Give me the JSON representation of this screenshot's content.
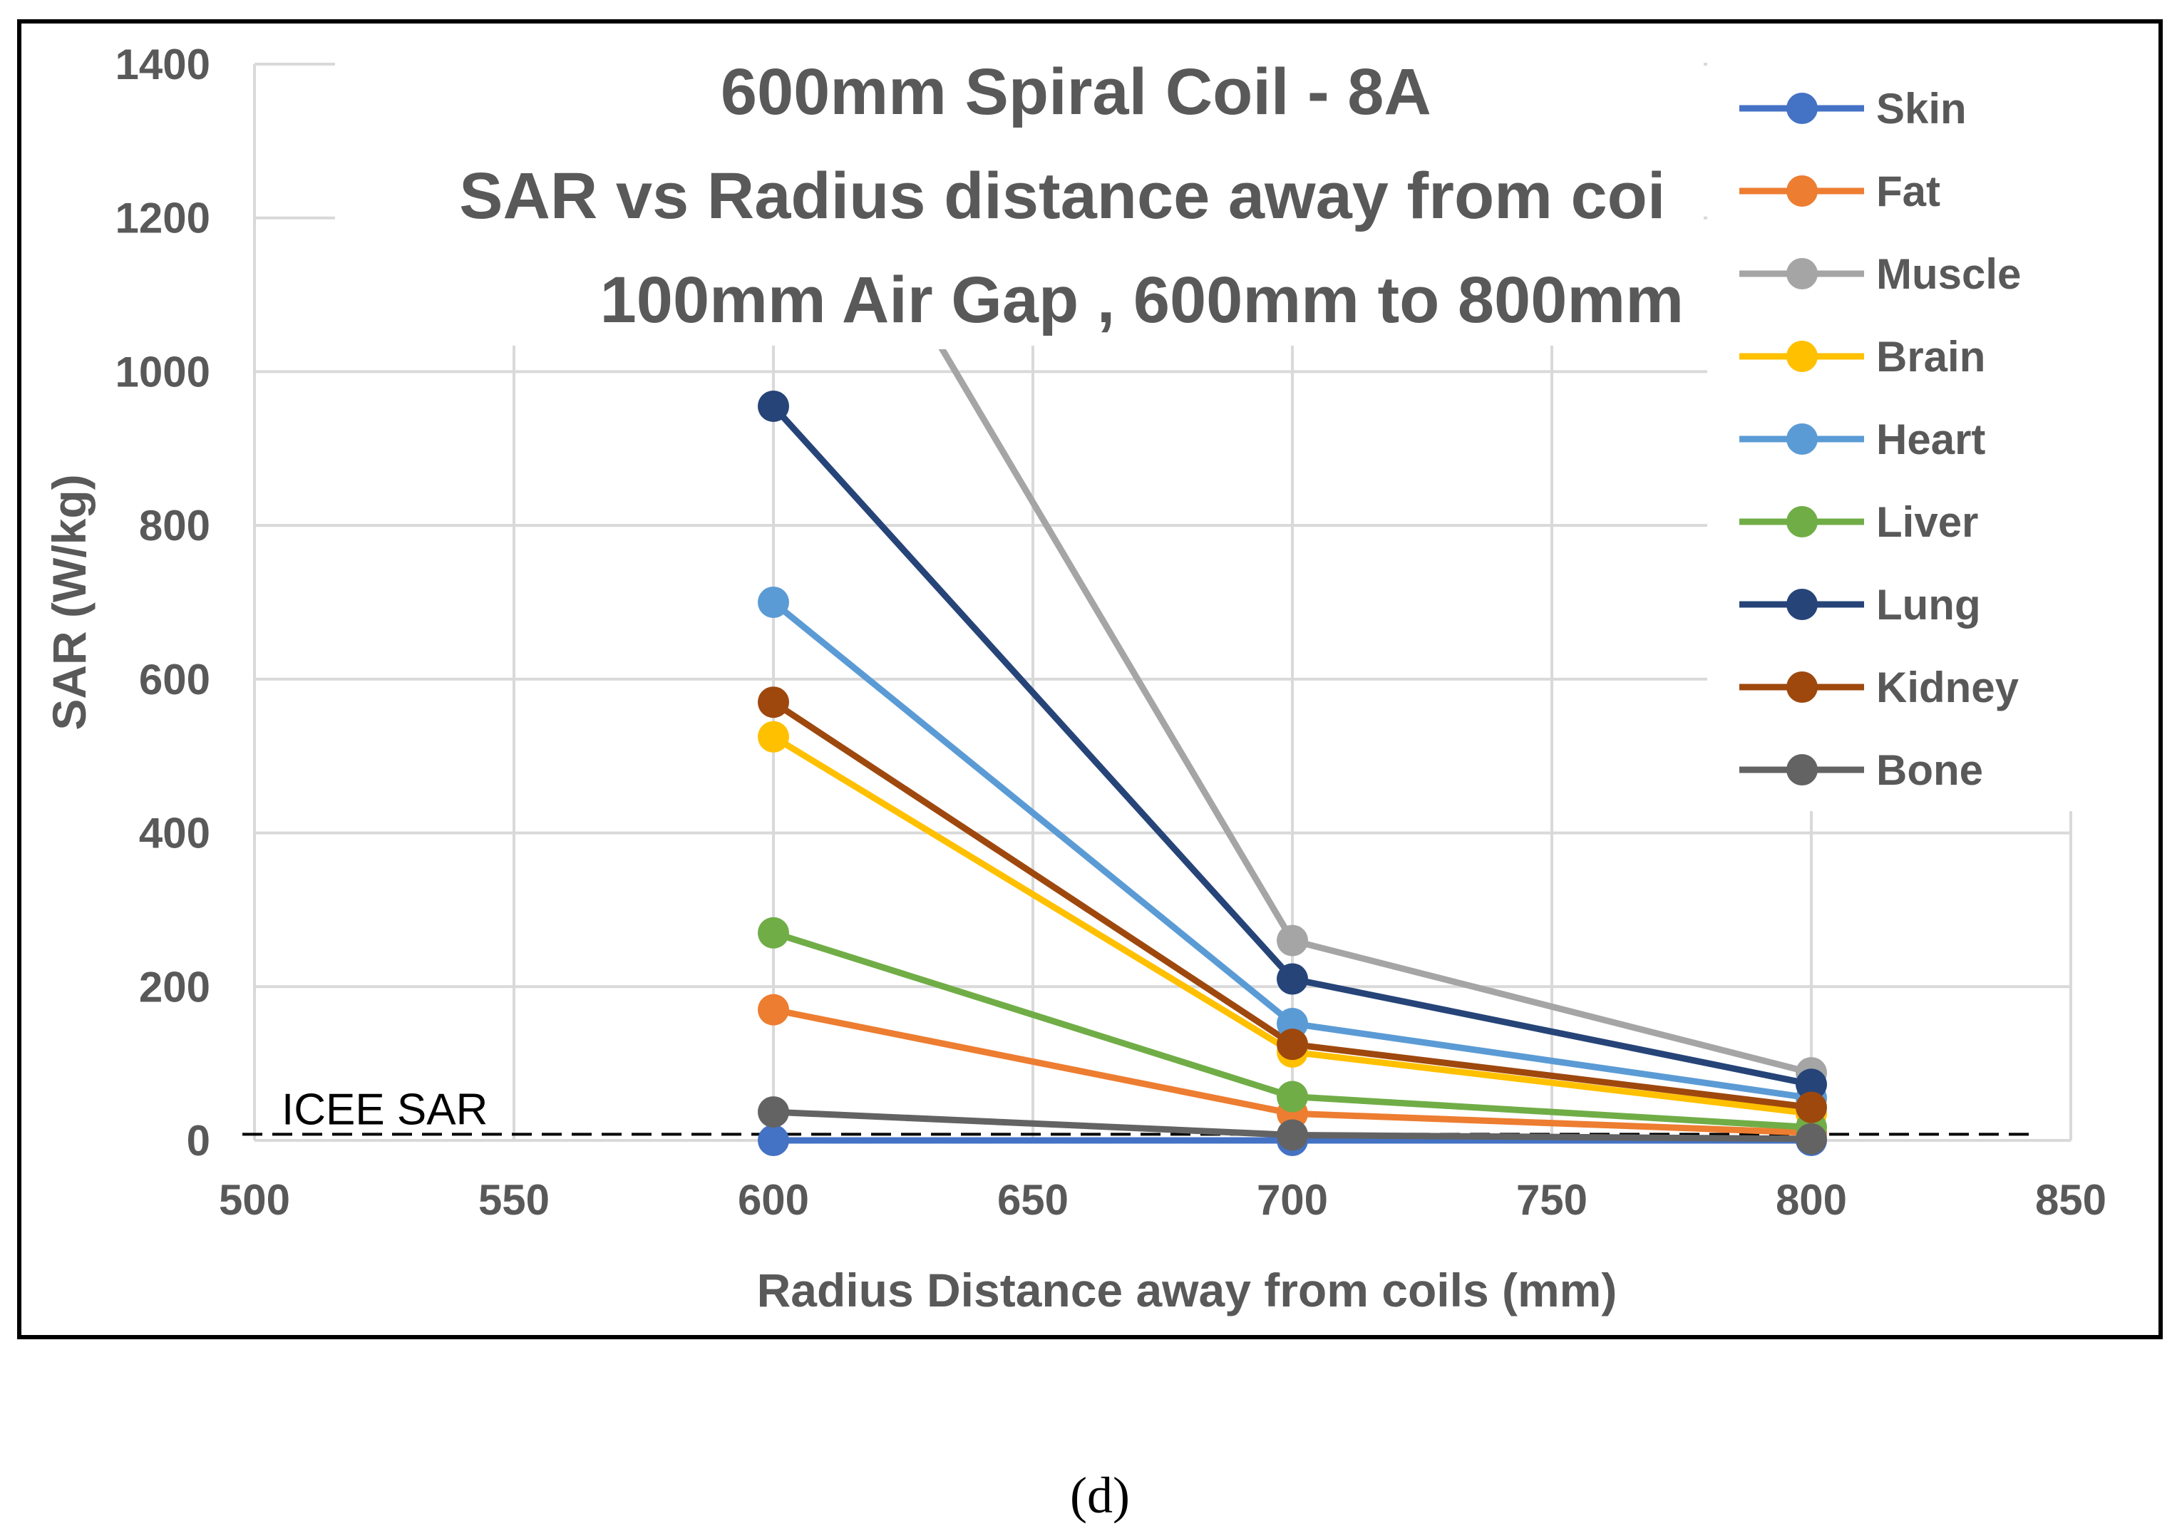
{
  "chart_data": {
    "type": "line",
    "title_lines": [
      "600mm Spiral Coil - 8A",
      "SAR vs Radius distance away from coi",
      "100mm Air Gap , 600mm to 800mm"
    ],
    "xlabel": "Radius Distance away from coils (mm)",
    "ylabel": "SAR (W/kg)",
    "xlim": [
      500,
      850
    ],
    "ylim": [
      0,
      1400
    ],
    "x_ticks": [
      500,
      550,
      600,
      650,
      700,
      750,
      800,
      850
    ],
    "y_ticks": [
      0,
      200,
      400,
      600,
      800,
      1000,
      1200,
      1400
    ],
    "grid": true,
    "legend_position": "right",
    "x": [
      600,
      700,
      800
    ],
    "series": [
      {
        "name": "Skin",
        "color": "#4472C4",
        "values": [
          0,
          0,
          0
        ]
      },
      {
        "name": "Fat",
        "color": "#ED7D31",
        "values": [
          170,
          35,
          10
        ]
      },
      {
        "name": "Muscle",
        "color": "#A5A5A5",
        "values": [
          1400,
          260,
          88
        ]
      },
      {
        "name": "Brain",
        "color": "#FFC000",
        "values": [
          525,
          115,
          35
        ]
      },
      {
        "name": "Heart",
        "color": "#5B9BD5",
        "values": [
          700,
          152,
          55
        ]
      },
      {
        "name": "Liver",
        "color": "#70AD47",
        "values": [
          270,
          57,
          17
        ]
      },
      {
        "name": "Lung",
        "color": "#264478",
        "values": [
          955,
          210,
          73
        ]
      },
      {
        "name": "Kidney",
        "color": "#9E480E",
        "values": [
          570,
          125,
          43
        ]
      },
      {
        "name": "Bone",
        "color": "#636363",
        "values": [
          37,
          7,
          2
        ]
      }
    ],
    "reference_line": {
      "label": "ICEE SAR",
      "value": 8,
      "style": "dashed"
    }
  },
  "caption": "(d)"
}
